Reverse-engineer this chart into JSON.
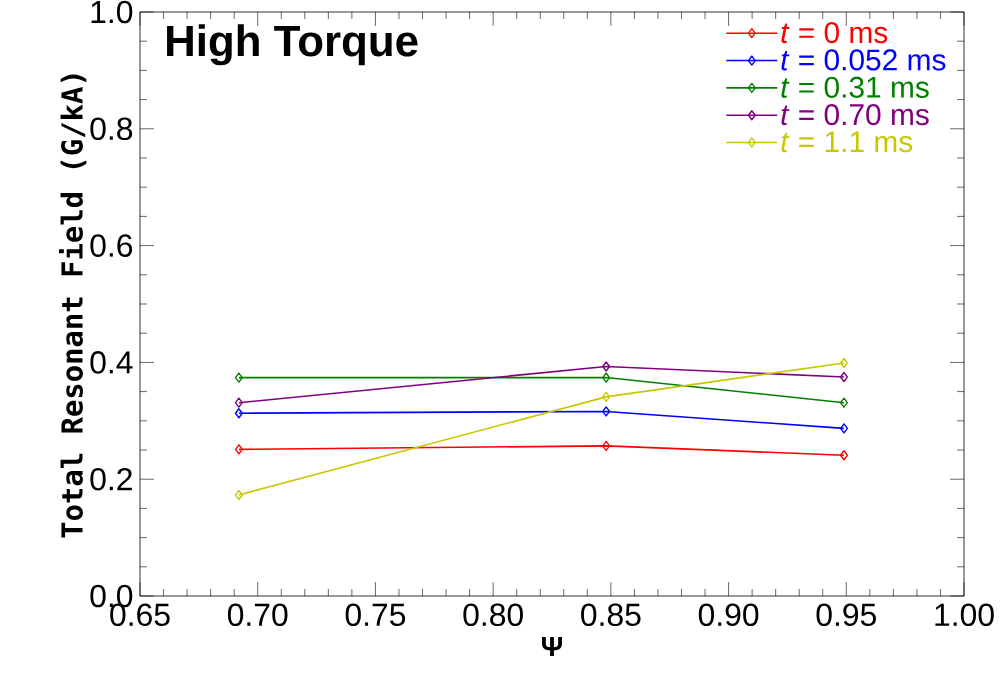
{
  "chart_data": {
    "type": "line",
    "title": "High Torque",
    "xlabel": "Ψ",
    "ylabel": "Total Resonant Field (G/kA)",
    "x": [
      0.692,
      0.848,
      0.949
    ],
    "series": [
      {
        "name": "*t* = 0 ms",
        "color": "#ff0000",
        "values": [
          0.251,
          0.257,
          0.241
        ]
      },
      {
        "name": "*t* = 0.052 ms",
        "color": "#0000ff",
        "values": [
          0.313,
          0.316,
          0.287
        ]
      },
      {
        "name": "*t* = 0.31 ms",
        "color": "#008000",
        "values": [
          0.374,
          0.374,
          0.331
        ]
      },
      {
        "name": "*t* = 0.70 ms",
        "color": "#800080",
        "values": [
          0.331,
          0.393,
          0.375
        ]
      },
      {
        "name": "*t* = 1.1 ms",
        "color": "#c8c800",
        "values": [
          0.173,
          0.341,
          0.399
        ]
      }
    ],
    "xlim": [
      0.65,
      1.0
    ],
    "xticks": [
      0.65,
      {
        "value": 0.7,
        "label": "0.70"
      },
      0.75,
      {
        "value": 0.8,
        "label": "0.80"
      },
      0.85,
      {
        "value": 0.9,
        "label": "0.90"
      },
      0.95,
      {
        "value": 1.0,
        "label": "1.00"
      }
    ],
    "ylim": [
      0,
      1.0
    ],
    "yticks": [
      {
        "value": 0,
        "label": "0.0"
      },
      0.2,
      0.4,
      0.6,
      0.8,
      {
        "value": 1.0,
        "label": "1.0"
      }
    ],
    "legend": "top right",
    "marker": "diamond",
    "line_style": "solid",
    "grid": false
  }
}
